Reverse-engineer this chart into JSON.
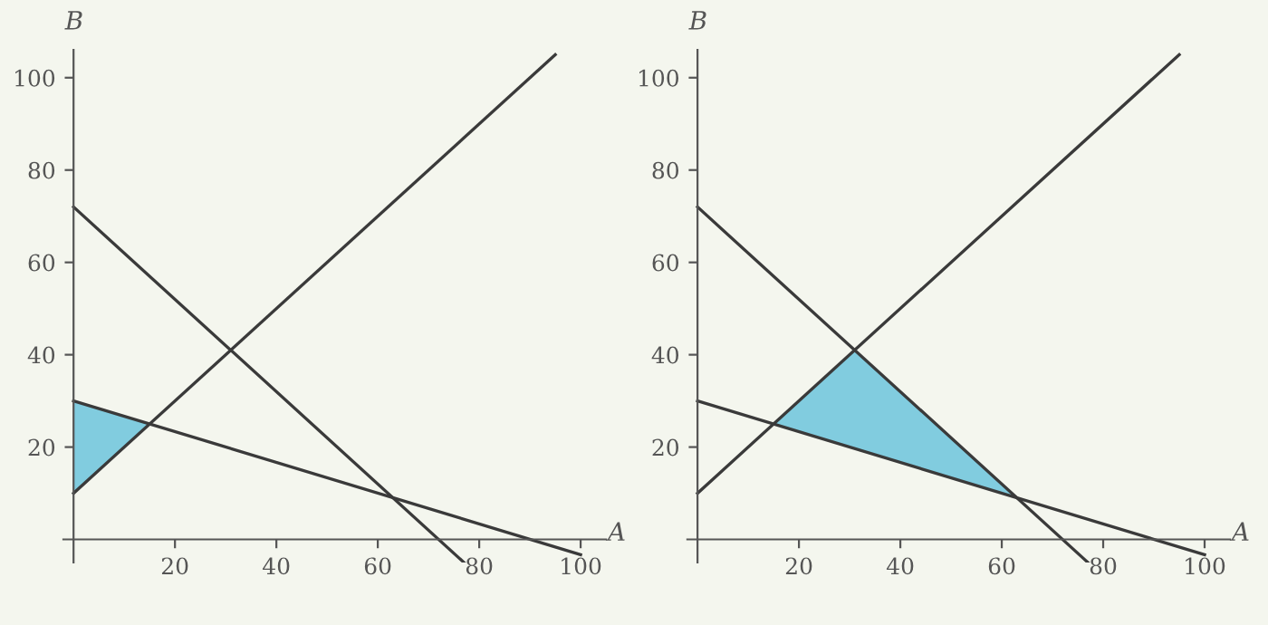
{
  "chart_data": [
    {
      "type": "line",
      "xlabel": "A",
      "ylabel": "B",
      "xlim": [
        -2,
        105
      ],
      "ylim": [
        -5,
        106
      ],
      "xticks": [
        20,
        40,
        60,
        80,
        100
      ],
      "yticks": [
        20,
        40,
        60,
        80,
        100
      ],
      "grid": false,
      "legend": false,
      "series": [
        {
          "type": "area",
          "color": "#6cc4dc",
          "x": [
            0,
            15,
            0
          ],
          "values": [
            30,
            25,
            10
          ]
        },
        {
          "color": "#3a3a3a",
          "x": [
            0,
            77
          ],
          "values": [
            72,
            -5
          ]
        },
        {
          "color": "#3a3a3a",
          "x": [
            0,
            95
          ],
          "values": [
            10,
            105
          ]
        },
        {
          "color": "#3a3a3a",
          "x": [
            0,
            100
          ],
          "values": [
            30,
            -3.3
          ]
        }
      ]
    },
    {
      "type": "line",
      "xlabel": "A",
      "ylabel": "B",
      "xlim": [
        -2,
        105
      ],
      "ylim": [
        -5,
        106
      ],
      "xticks": [
        20,
        40,
        60,
        80,
        100
      ],
      "yticks": [
        20,
        40,
        60,
        80,
        100
      ],
      "grid": false,
      "legend": false,
      "series": [
        {
          "type": "area",
          "color": "#6cc4dc",
          "x": [
            15,
            31,
            63
          ],
          "values": [
            25,
            41,
            9
          ]
        },
        {
          "color": "#3a3a3a",
          "x": [
            0,
            77
          ],
          "values": [
            72,
            -5
          ]
        },
        {
          "color": "#3a3a3a",
          "x": [
            0,
            95
          ],
          "values": [
            10,
            105
          ]
        },
        {
          "color": "#3a3a3a",
          "x": [
            0,
            100
          ],
          "values": [
            30,
            -3.3
          ]
        }
      ]
    }
  ]
}
